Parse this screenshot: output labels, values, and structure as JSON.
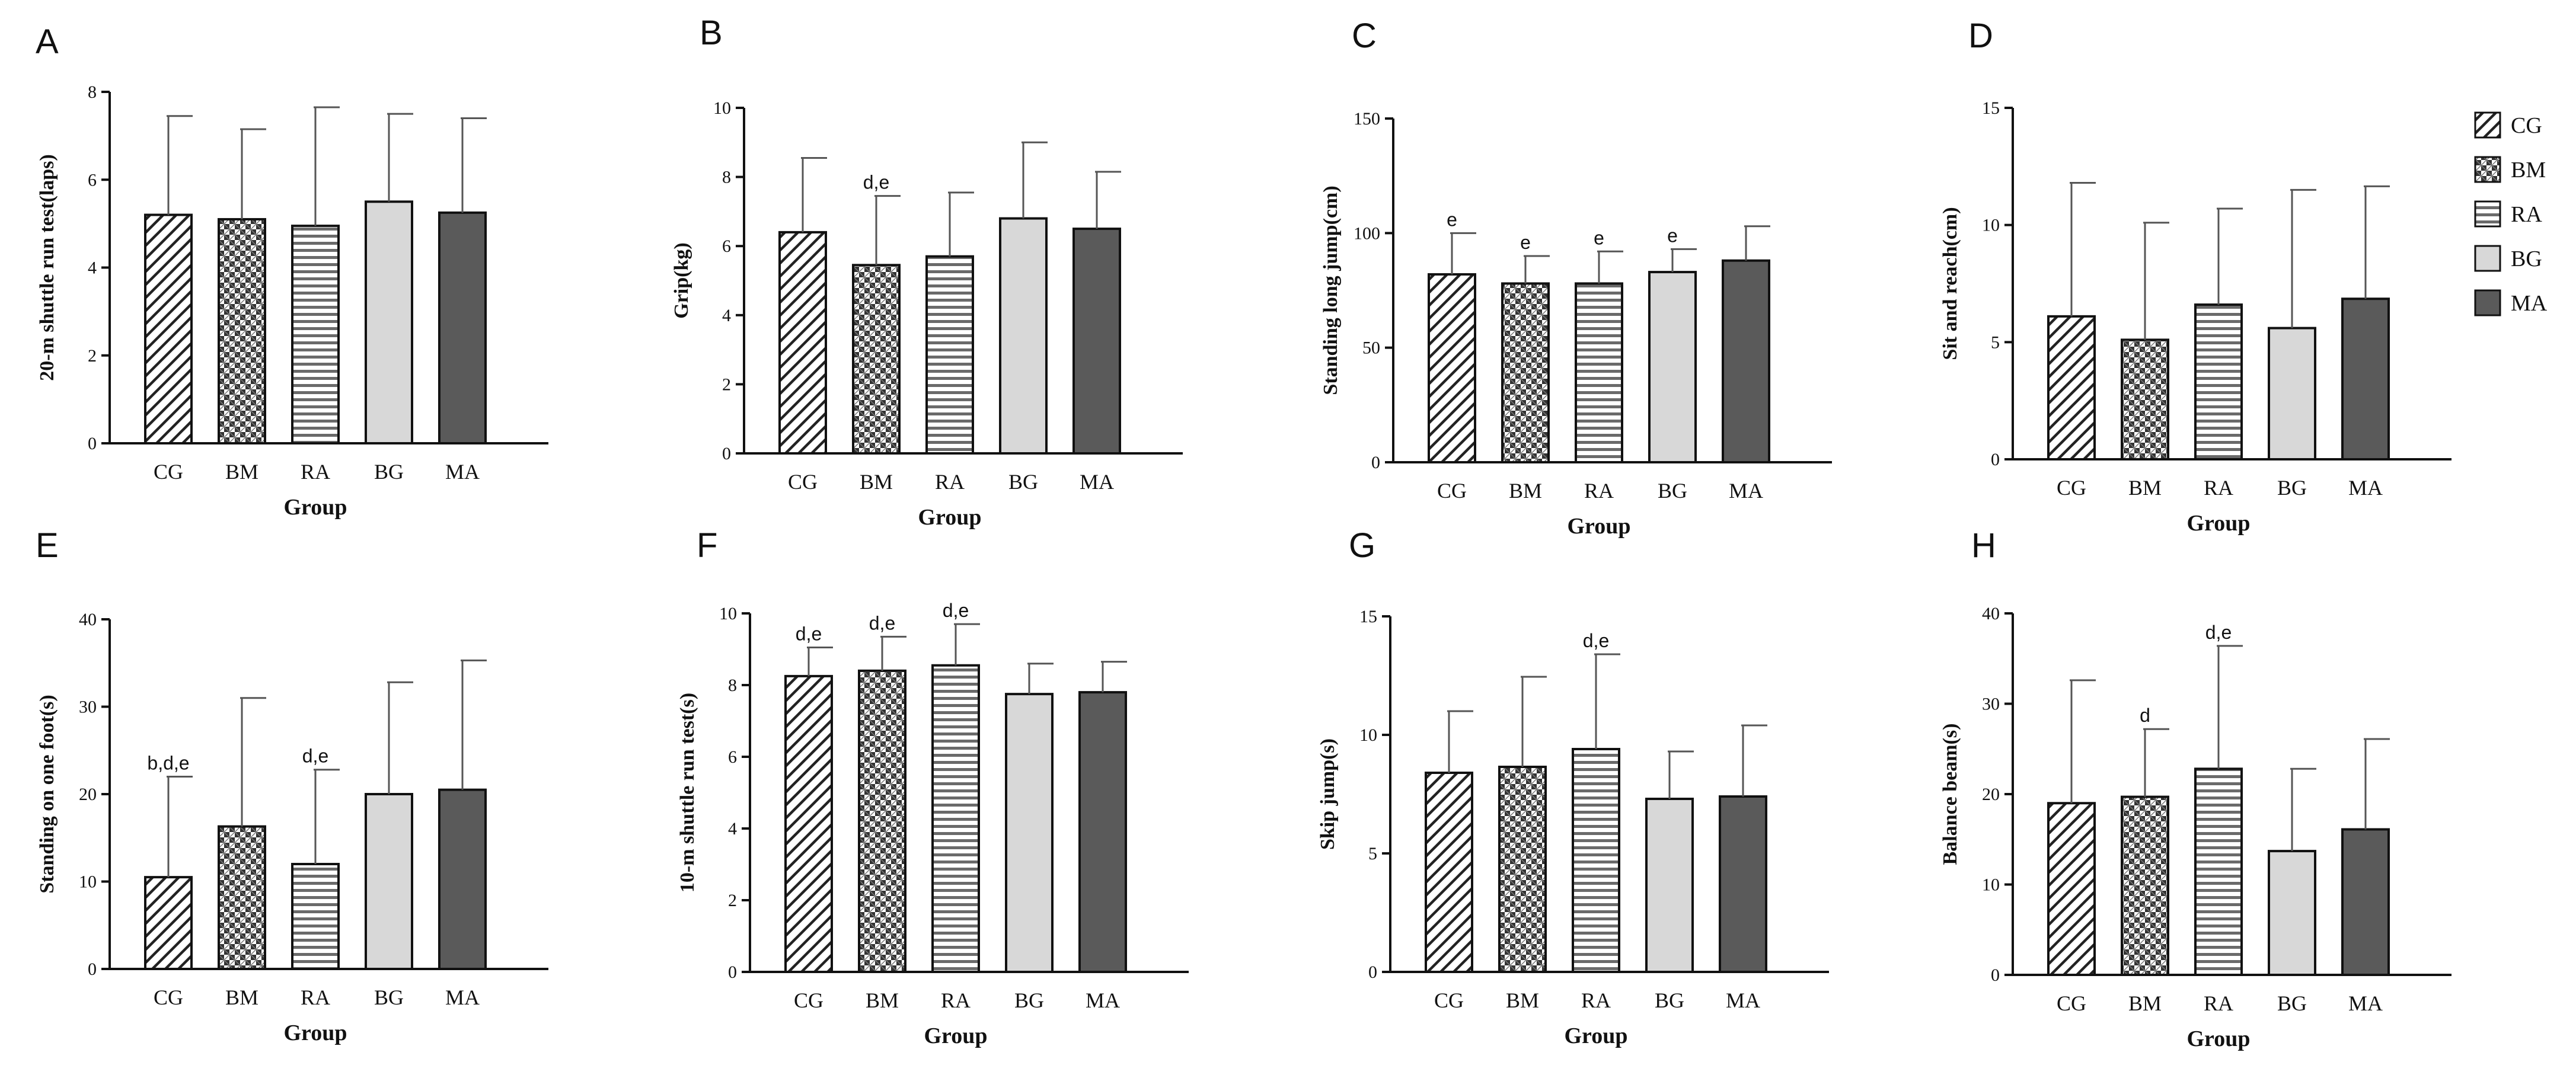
{
  "figure": {
    "groups": [
      "CG",
      "BM",
      "RA",
      "BG",
      "MA"
    ],
    "legend": [
      {
        "label": "CG",
        "pattern": "diagonal"
      },
      {
        "label": "BM",
        "pattern": "checker"
      },
      {
        "label": "RA",
        "pattern": "horizontal"
      },
      {
        "label": "BG",
        "pattern": "light"
      },
      {
        "label": "MA",
        "pattern": "dark"
      }
    ],
    "colors": {
      "light": "#d8d8d8",
      "dark": "#5a5a5a",
      "stroke": "#111111"
    }
  },
  "chart_data": [
    {
      "type": "bar",
      "panel": "A",
      "xlabel": "Group",
      "ylabel": "20-m shuttle run test(laps)",
      "ylim": [
        0,
        8
      ],
      "yticks": [
        0,
        2,
        4,
        6,
        8
      ],
      "categories": [
        "CG",
        "BM",
        "RA",
        "BG",
        "MA"
      ],
      "values": [
        5.2,
        5.1,
        4.95,
        5.5,
        5.25
      ],
      "errors": [
        2.25,
        2.05,
        2.7,
        2.0,
        2.15
      ],
      "annotations": [
        "",
        "",
        "",
        "",
        ""
      ]
    },
    {
      "type": "bar",
      "panel": "B",
      "xlabel": "Group",
      "ylabel": "Grip(kg)",
      "ylim": [
        0,
        10
      ],
      "yticks": [
        0,
        2,
        4,
        6,
        8,
        10
      ],
      "categories": [
        "CG",
        "BM",
        "RA",
        "BG",
        "MA"
      ],
      "values": [
        6.4,
        5.45,
        5.7,
        6.8,
        6.5
      ],
      "errors": [
        2.15,
        2.0,
        1.85,
        2.2,
        1.65
      ],
      "annotations": [
        "",
        "d,e",
        "",
        "",
        ""
      ]
    },
    {
      "type": "bar",
      "panel": "C",
      "xlabel": "Group",
      "ylabel": "Standing long jump(cm)",
      "ylim": [
        0,
        150
      ],
      "yticks": [
        0,
        50,
        100,
        150
      ],
      "categories": [
        "CG",
        "BM",
        "RA",
        "BG",
        "MA"
      ],
      "values": [
        82,
        78,
        78,
        83,
        88
      ],
      "errors": [
        18,
        12,
        14,
        10,
        15
      ],
      "annotations": [
        "e",
        "e",
        "e",
        "e",
        ""
      ]
    },
    {
      "type": "bar",
      "panel": "D",
      "xlabel": "Group",
      "ylabel": "Sit and reach(cm)",
      "ylim": [
        0,
        15
      ],
      "yticks": [
        0,
        5,
        10,
        15
      ],
      "categories": [
        "CG",
        "BM",
        "RA",
        "BG",
        "MA"
      ],
      "values": [
        6.1,
        5.1,
        6.6,
        5.6,
        6.85
      ],
      "errors": [
        5.7,
        5.0,
        4.1,
        5.9,
        4.8
      ],
      "annotations": [
        "",
        "",
        "",
        "",
        ""
      ]
    },
    {
      "type": "bar",
      "panel": "E",
      "xlabel": "Group",
      "ylabel": "Standing on one foot(s)",
      "ylim": [
        0,
        40
      ],
      "yticks": [
        0,
        10,
        20,
        30,
        40
      ],
      "categories": [
        "CG",
        "BM",
        "RA",
        "BG",
        "MA"
      ],
      "values": [
        10.5,
        16.3,
        12.0,
        20.0,
        20.5
      ],
      "errors": [
        11.5,
        14.7,
        10.8,
        12.8,
        14.8
      ],
      "annotations": [
        "b,d,e",
        "",
        "d,e",
        "",
        ""
      ]
    },
    {
      "type": "bar",
      "panel": "F",
      "xlabel": "Group",
      "ylabel": "10-m shuttle run test(s)",
      "ylim": [
        0,
        10
      ],
      "yticks": [
        0,
        2,
        4,
        6,
        8,
        10
      ],
      "categories": [
        "CG",
        "BM",
        "RA",
        "BG",
        "MA"
      ],
      "values": [
        8.25,
        8.4,
        8.55,
        7.75,
        7.8
      ],
      "errors": [
        0.8,
        0.95,
        1.15,
        0.85,
        0.85
      ],
      "annotations": [
        "d,e",
        "d,e",
        "d,e",
        "",
        ""
      ]
    },
    {
      "type": "bar",
      "panel": "G",
      "xlabel": "Group",
      "ylabel": "Skip jump(s)",
      "ylim": [
        0,
        15
      ],
      "yticks": [
        0,
        5,
        10,
        15
      ],
      "categories": [
        "CG",
        "BM",
        "RA",
        "BG",
        "MA"
      ],
      "values": [
        8.4,
        8.65,
        9.4,
        7.3,
        7.4
      ],
      "errors": [
        2.6,
        3.8,
        4.0,
        2.0,
        3.0
      ],
      "annotations": [
        "",
        "",
        "d,e",
        "",
        ""
      ]
    },
    {
      "type": "bar",
      "panel": "H",
      "xlabel": "Group",
      "ylabel": "Balance beam(s)",
      "ylim": [
        0,
        40
      ],
      "yticks": [
        0,
        10,
        20,
        30,
        40
      ],
      "categories": [
        "CG",
        "BM",
        "RA",
        "BG",
        "MA"
      ],
      "values": [
        19.0,
        19.7,
        22.8,
        13.7,
        16.1
      ],
      "errors": [
        13.6,
        7.5,
        13.6,
        9.1,
        10.0
      ],
      "annotations": [
        "",
        "d",
        "d,e",
        "",
        ""
      ]
    }
  ]
}
